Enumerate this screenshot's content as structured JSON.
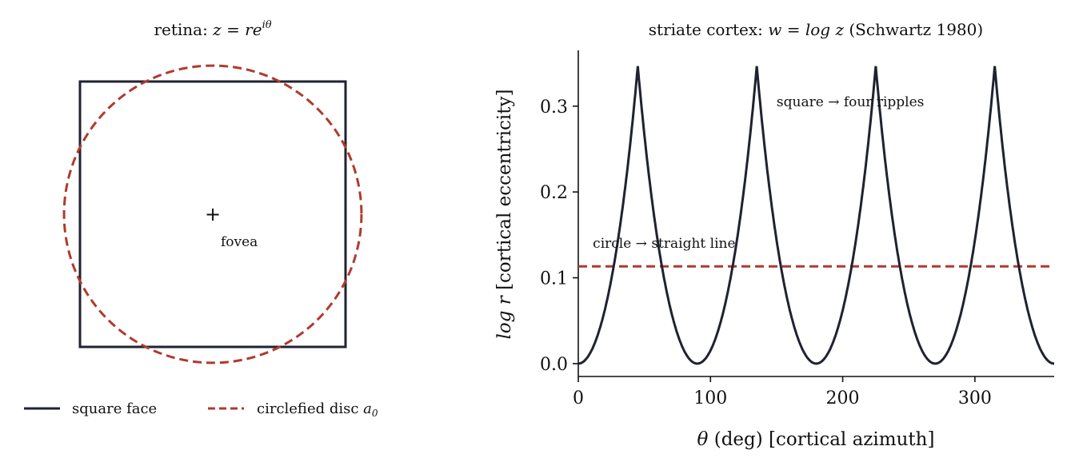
{
  "colors": {
    "square": "#1f2230",
    "circle": "#b03a2e",
    "text": "#111111",
    "axis": "#111111"
  },
  "chart_data": [
    {
      "type": "line",
      "panel": "retina",
      "title_text": "retina: ",
      "title_math": "z = re",
      "title_sup": "iθ",
      "series": [
        {
          "name": "square face",
          "shape": "square",
          "x": [
            -1,
            1,
            1,
            -1,
            -1
          ],
          "y": [
            -1,
            -1,
            1,
            1,
            -1
          ],
          "style": "solid"
        },
        {
          "name": "circlefied disc",
          "name_math": "a",
          "name_sub": "0",
          "shape": "circle",
          "center": [
            0,
            0
          ],
          "radius": 1.12,
          "style": "dashed"
        }
      ],
      "center_marker": "+",
      "annotations": [
        {
          "text": "fovea",
          "x": 0.06,
          "y": -0.21
        }
      ],
      "xlim": [
        -1.25,
        1.25
      ],
      "ylim": [
        -1.25,
        1.25
      ],
      "axes_visible": false,
      "legend": "bottom, 2 columns"
    },
    {
      "type": "line",
      "panel": "cortex",
      "title_text": "striate cortex: ",
      "title_math": "w = log z",
      "title_suffix": " (Schwartz 1980)",
      "xlabel_math": "θ",
      "xlabel_text": " (deg)  [cortical azimuth]",
      "ylabel_math": "log r",
      "ylabel_text": "  [cortical eccentricity]",
      "xlim": [
        0,
        360
      ],
      "ylim": [
        -0.015,
        0.365
      ],
      "xticks": [
        0,
        100,
        200,
        300
      ],
      "yticks": [
        0.0,
        0.1,
        0.2,
        0.3
      ],
      "ytick_labels": [
        "0.0",
        "0.1",
        "0.2",
        "0.3"
      ],
      "series": [
        {
          "shape": "log-sec-square",
          "formula": "log(1/max(|cos θ|,|sin θ|))",
          "x_range": [
            0,
            360
          ],
          "peaks_at": [
            45,
            135,
            225,
            315
          ],
          "peak": 0.3466,
          "style": "solid"
        },
        {
          "shape": "horizontal",
          "y": 0.1133,
          "x_range": [
            0,
            360
          ],
          "style": "dashed"
        }
      ],
      "annotations": [
        {
          "text": "square  →  four ripples",
          "x": 150,
          "y": 0.3,
          "color": "text"
        },
        {
          "text": "circle  →  straight line",
          "x": 11,
          "y": 0.135,
          "color": "circle"
        }
      ],
      "grid": false,
      "spines": "left, bottom"
    }
  ]
}
